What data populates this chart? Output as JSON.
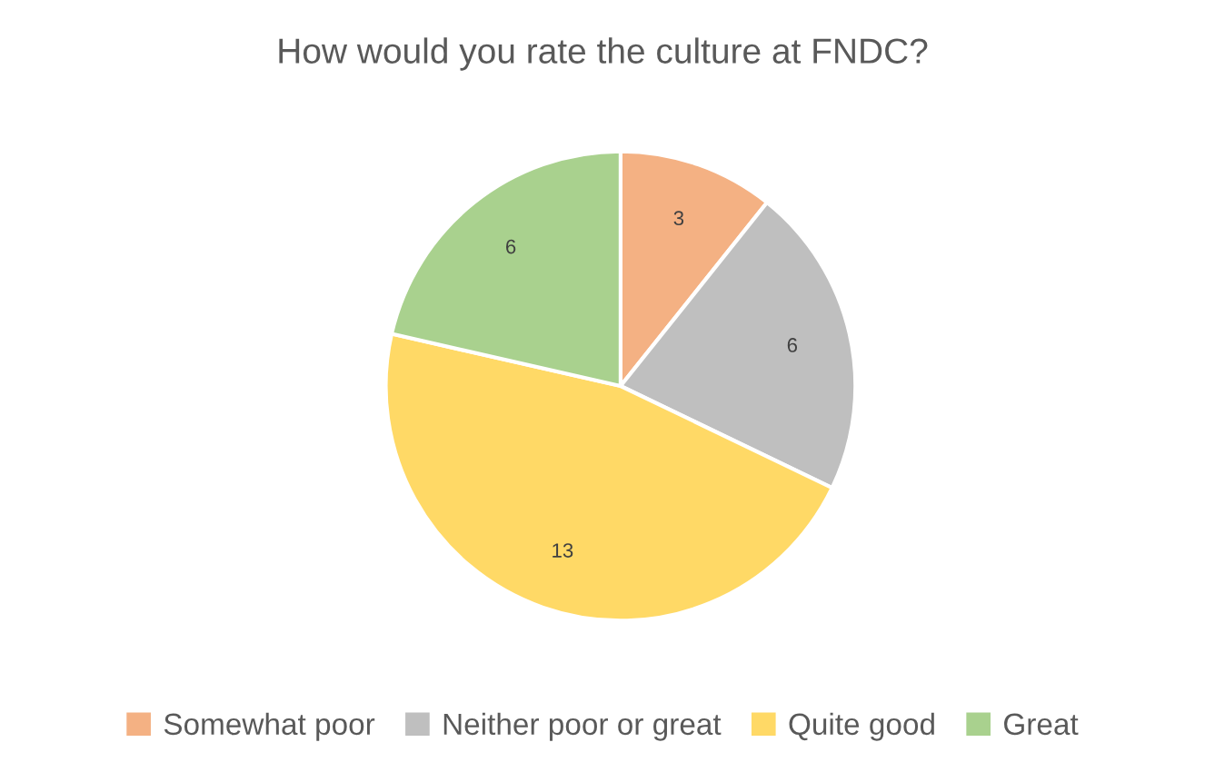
{
  "chart_data": {
    "type": "pie",
    "title": "How would you rate the culture at FNDC?",
    "categories": [
      "Somewhat poor",
      "Neither poor or great",
      "Quite good",
      "Great"
    ],
    "values": [
      3,
      6,
      13,
      6
    ],
    "colors": [
      "#f4b183",
      "#bfbfbf",
      "#ffd966",
      "#a9d18e"
    ],
    "data_labels": true,
    "legend": "bottom"
  }
}
